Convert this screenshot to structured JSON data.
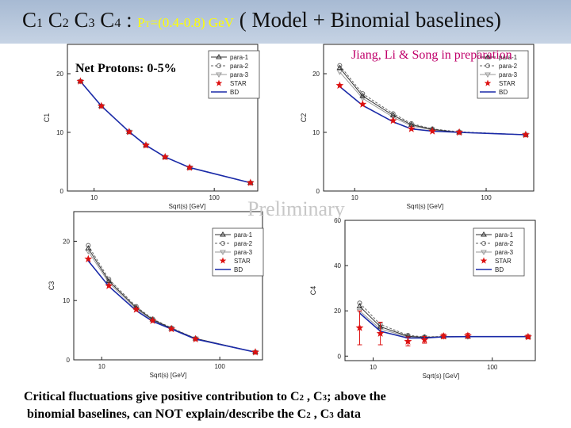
{
  "title": {
    "parts": [
      "C",
      "1",
      " C",
      "2",
      " C",
      "3",
      " C",
      "4",
      " : "
    ],
    "pt_parts": [
      "P",
      "T",
      "=(0.4-0.8) GeV"
    ],
    "suffix": "  ( Model + Binomial baselines)"
  },
  "subtitle": "Net Protons: 0-5%",
  "credit": "Jiang, Li & Song in preparation",
  "watermark": "Preliminary",
  "conclusion": {
    "l1": [
      "Critical fluctuations give positive contribution to C",
      "2",
      " , C",
      "3",
      ";  above the"
    ],
    "l2": [
      "binomial baselines,   can NOT explain/describe the C",
      "2",
      " , C",
      "3",
      " data"
    ]
  },
  "colors": {
    "para1": "#333333",
    "para2": "#666666",
    "para3": "#9a9a9a",
    "star": "#dd1111",
    "bd": "#1a2aa8",
    "title_bar": "#b5c5db",
    "pt_label": "#ffff00",
    "credit": "#c0006a"
  },
  "chart_data": [
    {
      "type": "line",
      "id": "c1",
      "ylabel": "C1",
      "xlabel": "Sqrt(s) [GeV]",
      "x_scale": "log",
      "xlim": [
        6.0,
        230
      ],
      "ylim": [
        0,
        25
      ],
      "x_ticks": [
        {
          "v": 10,
          "label": "10"
        },
        {
          "v": 100,
          "label": "100"
        }
      ],
      "y_ticks": [
        {
          "v": 0,
          "label": "0"
        },
        {
          "v": 10,
          "label": "10"
        },
        {
          "v": 20,
          "label": "20"
        }
      ],
      "legend": [
        "para-1",
        "para-2",
        "para-3",
        "STAR",
        "BD"
      ],
      "legend_position": "top-right",
      "series": [
        {
          "name": "BD",
          "x": [
            7.7,
            11.5,
            19.6,
            27,
            39,
            62.4,
            200
          ],
          "y": [
            18.7,
            14.5,
            10.1,
            7.8,
            5.8,
            4.0,
            1.4
          ]
        },
        {
          "name": "STAR",
          "x": [
            7.7,
            11.5,
            19.6,
            27,
            39,
            62.4,
            200
          ],
          "y": [
            18.7,
            14.5,
            10.1,
            7.8,
            5.8,
            4.0,
            1.4
          ]
        },
        {
          "name": "para-1",
          "x": [
            7.7,
            11.5,
            19.6,
            27,
            39,
            62.4,
            200
          ],
          "y": [
            18.7,
            14.5,
            10.1,
            7.8,
            5.8,
            4.0,
            1.4
          ]
        },
        {
          "name": "para-2",
          "x": [
            7.7,
            11.5,
            19.6,
            27,
            39,
            62.4,
            200
          ],
          "y": [
            18.7,
            14.5,
            10.1,
            7.8,
            5.8,
            4.0,
            1.4
          ]
        },
        {
          "name": "para-3",
          "x": [
            7.7,
            11.5,
            19.6,
            27,
            39,
            62.4,
            200
          ],
          "y": [
            18.7,
            14.5,
            10.1,
            7.8,
            5.8,
            4.0,
            1.4
          ]
        }
      ]
    },
    {
      "type": "line",
      "id": "c2",
      "ylabel": "C2",
      "xlabel": "Sqrt(s) [GeV]",
      "x_scale": "log",
      "xlim": [
        5.8,
        230
      ],
      "ylim": [
        0,
        25
      ],
      "x_ticks": [
        {
          "v": 10,
          "label": "10"
        },
        {
          "v": 100,
          "label": "100"
        }
      ],
      "y_ticks": [
        {
          "v": 0,
          "label": "0"
        },
        {
          "v": 10,
          "label": "10"
        },
        {
          "v": 20,
          "label": "20"
        }
      ],
      "legend": [
        "para-1",
        "para-2",
        "para-3",
        "STAR",
        "BD"
      ],
      "legend_position": "top-right",
      "series": [
        {
          "name": "BD",
          "x": [
            7.7,
            11.5,
            19.6,
            27,
            39,
            62.4,
            200
          ],
          "y": [
            17.8,
            14.6,
            11.8,
            10.6,
            10.2,
            10.0,
            9.6
          ]
        },
        {
          "name": "STAR",
          "x": [
            7.7,
            11.5,
            19.6,
            27,
            39,
            62.4,
            200
          ],
          "y": [
            18.0,
            14.8,
            12.0,
            10.6,
            10.2,
            10.0,
            9.6
          ]
        },
        {
          "name": "para-1",
          "x": [
            7.7,
            11.5,
            19.6,
            27,
            39,
            62.4,
            200
          ],
          "y": [
            21.0,
            16.2,
            12.9,
            11.3,
            10.5,
            10.0,
            9.6
          ]
        },
        {
          "name": "para-2",
          "x": [
            7.7,
            11.5,
            19.6,
            27,
            39,
            62.4,
            200
          ],
          "y": [
            21.4,
            16.6,
            13.2,
            11.5,
            10.6,
            10.1,
            9.6
          ]
        },
        {
          "name": "para-3",
          "x": [
            7.7,
            11.5,
            19.6,
            27,
            39,
            62.4,
            200
          ],
          "y": [
            20.3,
            15.8,
            12.6,
            11.1,
            10.4,
            10.0,
            9.6
          ]
        }
      ]
    },
    {
      "type": "line",
      "id": "c3",
      "ylabel": "C3",
      "xlabel": "Sqrt(s) [GeV]",
      "x_scale": "log",
      "xlim": [
        5.8,
        230
      ],
      "ylim": [
        0,
        25
      ],
      "x_ticks": [
        {
          "v": 10,
          "label": "10"
        },
        {
          "v": 100,
          "label": "100"
        }
      ],
      "y_ticks": [
        {
          "v": 0,
          "label": "0"
        },
        {
          "v": 10,
          "label": "10"
        },
        {
          "v": 20,
          "label": "20"
        }
      ],
      "legend": [
        "para-1",
        "para-2",
        "para-3",
        "STAR",
        "BD"
      ],
      "legend_position": "top-right",
      "series": [
        {
          "name": "BD",
          "x": [
            7.7,
            11.5,
            19.6,
            27,
            39,
            62.4,
            200
          ],
          "y": [
            16.7,
            12.4,
            8.3,
            6.5,
            5.2,
            3.5,
            1.3
          ]
        },
        {
          "name": "STAR",
          "x": [
            7.7,
            11.5,
            19.6,
            27,
            39,
            62.4,
            200
          ],
          "y": [
            17.0,
            12.5,
            8.5,
            6.6,
            5.2,
            3.5,
            1.3
          ]
        },
        {
          "name": "para-1",
          "x": [
            7.7,
            11.5,
            19.6,
            27,
            39,
            62.4,
            200
          ],
          "y": [
            18.8,
            13.3,
            8.8,
            6.8,
            5.3,
            3.6,
            1.3
          ]
        },
        {
          "name": "para-2",
          "x": [
            7.7,
            11.5,
            19.6,
            27,
            39,
            62.4,
            200
          ],
          "y": [
            19.3,
            13.6,
            9.0,
            6.9,
            5.4,
            3.6,
            1.3
          ]
        },
        {
          "name": "para-3",
          "x": [
            7.7,
            11.5,
            19.6,
            27,
            39,
            62.4,
            200
          ],
          "y": [
            18.3,
            13.0,
            8.6,
            6.7,
            5.3,
            3.6,
            1.3
          ]
        }
      ]
    },
    {
      "type": "line",
      "id": "c4",
      "ylabel": "C4",
      "xlabel": "Sqrt(s) [GeV]",
      "x_scale": "log",
      "xlim": [
        5.8,
        230
      ],
      "ylim": [
        -2,
        60
      ],
      "x_ticks": [
        {
          "v": 10,
          "label": "10"
        },
        {
          "v": 100,
          "label": "100"
        }
      ],
      "y_ticks": [
        {
          "v": 0,
          "label": "0"
        },
        {
          "v": 20,
          "label": "20"
        },
        {
          "v": 40,
          "label": "40"
        },
        {
          "v": 60,
          "label": "60"
        }
      ],
      "legend": [
        "para-1",
        "para-2",
        "para-3",
        "STAR",
        "BD"
      ],
      "legend_position": "top-right",
      "series": [
        {
          "name": "BD",
          "x": [
            7.7,
            11.5,
            19.6,
            27,
            39,
            62.4,
            200
          ],
          "y": [
            19.0,
            11.0,
            8.0,
            8.0,
            8.5,
            8.6,
            8.6
          ]
        },
        {
          "name": "STAR",
          "x": [
            7.7,
            11.5,
            19.6,
            27,
            39,
            62.4,
            200
          ],
          "y": [
            12.5,
            10.0,
            6.5,
            7.2,
            8.8,
            9.0,
            8.5
          ],
          "err": [
            7.5,
            5.0,
            2.0,
            1.5,
            1.0,
            1.0,
            0.8
          ]
        },
        {
          "name": "para-1",
          "x": [
            7.7,
            11.5,
            19.6,
            27,
            39,
            62.4,
            200
          ],
          "y": [
            22.0,
            13.0,
            8.8,
            8.3,
            8.6,
            8.6,
            8.6
          ]
        },
        {
          "name": "para-2",
          "x": [
            7.7,
            11.5,
            19.6,
            27,
            39,
            62.4,
            200
          ],
          "y": [
            23.5,
            14.0,
            9.2,
            8.5,
            8.7,
            8.6,
            8.6
          ]
        },
        {
          "name": "para-3",
          "x": [
            7.7,
            11.5,
            19.6,
            27,
            39,
            62.4,
            200
          ],
          "y": [
            20.0,
            12.0,
            8.5,
            8.2,
            8.6,
            8.6,
            8.6
          ]
        }
      ]
    }
  ]
}
